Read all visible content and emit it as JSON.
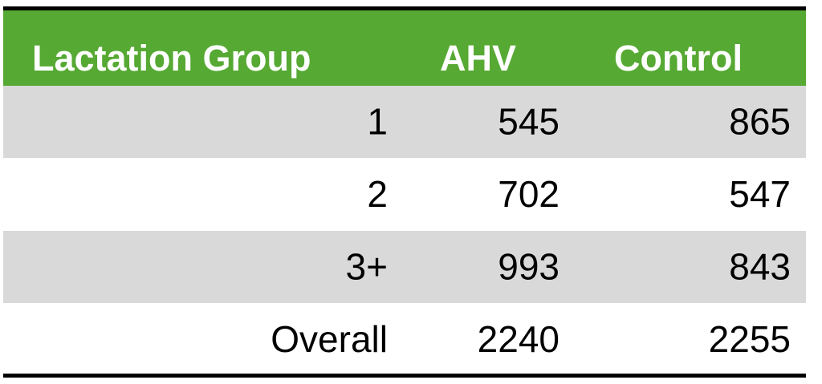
{
  "table": {
    "header": [
      "Lactation Group",
      "AHV",
      "Control"
    ],
    "rows": [
      [
        "1",
        545,
        865
      ],
      [
        "2",
        702,
        547
      ],
      [
        "3+",
        993,
        843
      ],
      [
        "Overall",
        2240,
        2255
      ]
    ]
  }
}
